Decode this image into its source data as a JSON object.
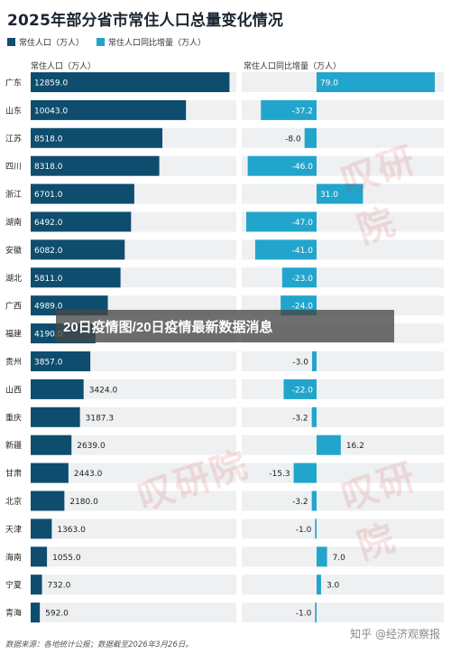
{
  "chart_data": {
    "type": "bar",
    "title": "2025年部分省市常住人口总量变化情况",
    "legend": [
      "常住人口（万人）",
      "常住人口同比增量（万人）"
    ],
    "legend_placement": "top-left",
    "categories": [
      "广东",
      "山东",
      "江苏",
      "四川",
      "浙江",
      "湖南",
      "安徽",
      "湖北",
      "广西",
      "福建",
      "贵州",
      "山西",
      "重庆",
      "新疆",
      "甘肃",
      "北京",
      "天津",
      "海南",
      "宁夏",
      "青海"
    ],
    "series": [
      {
        "name": "常住人口（万人）",
        "axis_label": "常住人口（万人）",
        "values": [
          12859.0,
          10043.0,
          8518.0,
          8318.0,
          6701.0,
          6492.0,
          6082.0,
          5811.0,
          4989.0,
          4190.0,
          3857.0,
          3424.0,
          3187.3,
          2639.0,
          2443.0,
          2180.0,
          1363.0,
          1055.0,
          732.0,
          592.0
        ],
        "labels": [
          "12859.0",
          "10043.0",
          "8518.0",
          "8318.0",
          "6701.0",
          "6492.0",
          "6082.0",
          "5811.0",
          "4989.0",
          "4190.0",
          "3857.0",
          "3424.0",
          "3187.3",
          "2639.0",
          "2443.0",
          "2180.0",
          "1363.0",
          "1055.0",
          "732.0",
          "592.0"
        ],
        "xlim": [
          0,
          13300
        ]
      },
      {
        "name": "常住人口同比增量（万人）",
        "axis_label": "常住人口同比增量（万人）",
        "values": [
          79.0,
          -37.2,
          -8.0,
          -46.0,
          31.0,
          -47.0,
          -41.0,
          -23.0,
          -24.0,
          0,
          -3.0,
          -22.0,
          -3.2,
          16.2,
          -15.3,
          -3.2,
          -1.0,
          7.0,
          3.0,
          -1.0
        ],
        "labels": [
          "79.0",
          "-37.2",
          "-8.0",
          "-46.0",
          "31.0",
          "-47.0",
          "-41.0",
          "-23.0",
          "-24.0",
          "",
          "-3.0",
          "-22.0",
          "-3.2",
          "16.2",
          "-15.3",
          "-3.2",
          "-1.0",
          "7.0",
          "3.0",
          "-1.0"
        ],
        "xlim": [
          -50,
          85
        ]
      }
    ],
    "grid": false
  },
  "colors": {
    "population": "#0e4d6e",
    "change": "#22a5cc",
    "track": "#eef0f2"
  },
  "footer": "数据来源：各地统计公报；数据截至2026年3月26日。",
  "watermark": "知乎 @经济观察报",
  "overlay_text": "20日疫情图/20日疫情最新数据消息",
  "stamp_text": "叹研院"
}
